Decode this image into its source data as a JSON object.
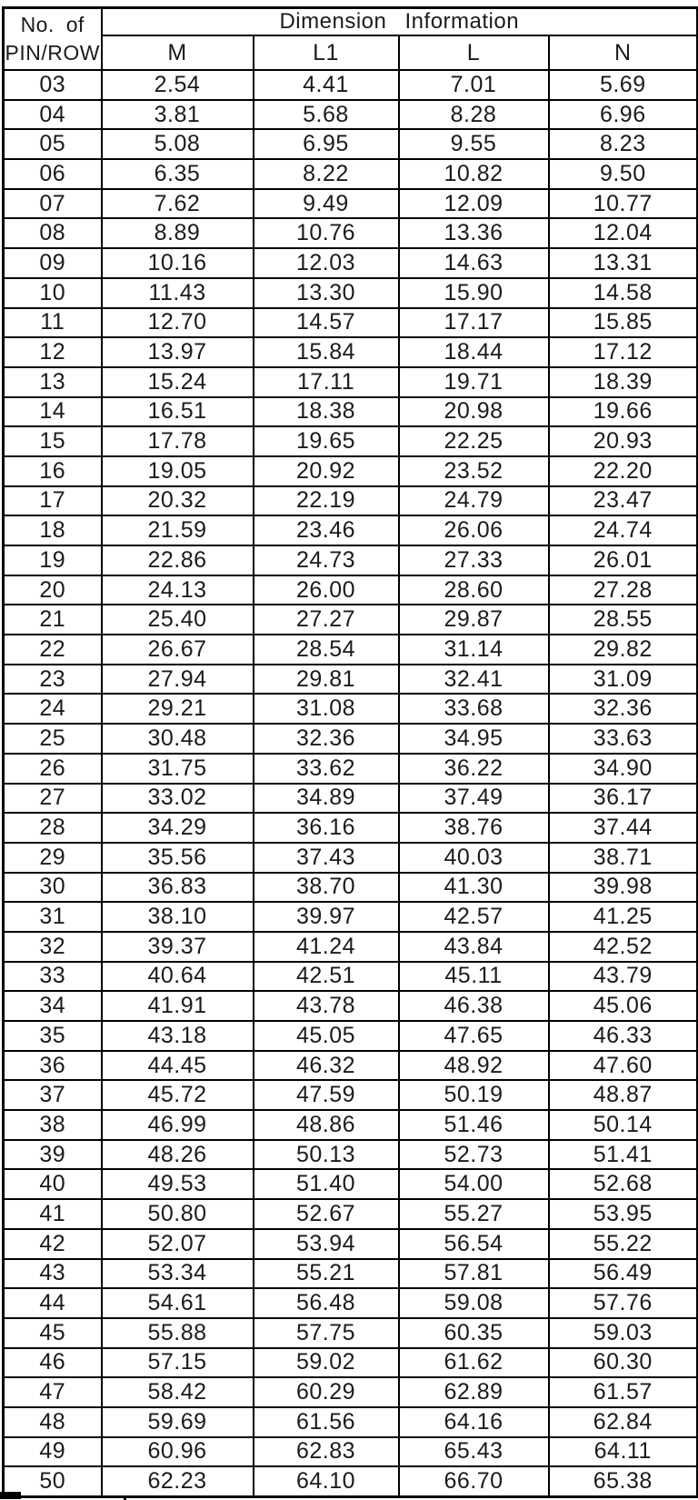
{
  "table": {
    "pin_header": {
      "line1": "No. of",
      "line2": "PIN/ROW"
    },
    "group_header": "Dimension Information",
    "columns": [
      "M",
      "L1",
      "L",
      "N"
    ],
    "rows": [
      [
        "03",
        "2.54",
        "4.41",
        "7.01",
        "5.69"
      ],
      [
        "04",
        "3.81",
        "5.68",
        "8.28",
        "6.96"
      ],
      [
        "05",
        "5.08",
        "6.95",
        "9.55",
        "8.23"
      ],
      [
        "06",
        "6.35",
        "8.22",
        "10.82",
        "9.50"
      ],
      [
        "07",
        "7.62",
        "9.49",
        "12.09",
        "10.77"
      ],
      [
        "08",
        "8.89",
        "10.76",
        "13.36",
        "12.04"
      ],
      [
        "09",
        "10.16",
        "12.03",
        "14.63",
        "13.31"
      ],
      [
        "10",
        "11.43",
        "13.30",
        "15.90",
        "14.58"
      ],
      [
        "11",
        "12.70",
        "14.57",
        "17.17",
        "15.85"
      ],
      [
        "12",
        "13.97",
        "15.84",
        "18.44",
        "17.12"
      ],
      [
        "13",
        "15.24",
        "17.11",
        "19.71",
        "18.39"
      ],
      [
        "14",
        "16.51",
        "18.38",
        "20.98",
        "19.66"
      ],
      [
        "15",
        "17.78",
        "19.65",
        "22.25",
        "20.93"
      ],
      [
        "16",
        "19.05",
        "20.92",
        "23.52",
        "22.20"
      ],
      [
        "17",
        "20.32",
        "22.19",
        "24.79",
        "23.47"
      ],
      [
        "18",
        "21.59",
        "23.46",
        "26.06",
        "24.74"
      ],
      [
        "19",
        "22.86",
        "24.73",
        "27.33",
        "26.01"
      ],
      [
        "20",
        "24.13",
        "26.00",
        "28.60",
        "27.28"
      ],
      [
        "21",
        "25.40",
        "27.27",
        "29.87",
        "28.55"
      ],
      [
        "22",
        "26.67",
        "28.54",
        "31.14",
        "29.82"
      ],
      [
        "23",
        "27.94",
        "29.81",
        "32.41",
        "31.09"
      ],
      [
        "24",
        "29.21",
        "31.08",
        "33.68",
        "32.36"
      ],
      [
        "25",
        "30.48",
        "32.36",
        "34.95",
        "33.63"
      ],
      [
        "26",
        "31.75",
        "33.62",
        "36.22",
        "34.90"
      ],
      [
        "27",
        "33.02",
        "34.89",
        "37.49",
        "36.17"
      ],
      [
        "28",
        "34.29",
        "36.16",
        "38.76",
        "37.44"
      ],
      [
        "29",
        "35.56",
        "37.43",
        "40.03",
        "38.71"
      ],
      [
        "30",
        "36.83",
        "38.70",
        "41.30",
        "39.98"
      ],
      [
        "31",
        "38.10",
        "39.97",
        "42.57",
        "41.25"
      ],
      [
        "32",
        "39.37",
        "41.24",
        "43.84",
        "42.52"
      ],
      [
        "33",
        "40.64",
        "42.51",
        "45.11",
        "43.79"
      ],
      [
        "34",
        "41.91",
        "43.78",
        "46.38",
        "45.06"
      ],
      [
        "35",
        "43.18",
        "45.05",
        "47.65",
        "46.33"
      ],
      [
        "36",
        "44.45",
        "46.32",
        "48.92",
        "47.60"
      ],
      [
        "37",
        "45.72",
        "47.59",
        "50.19",
        "48.87"
      ],
      [
        "38",
        "46.99",
        "48.86",
        "51.46",
        "50.14"
      ],
      [
        "39",
        "48.26",
        "50.13",
        "52.73",
        "51.41"
      ],
      [
        "40",
        "49.53",
        "51.40",
        "54.00",
        "52.68"
      ],
      [
        "41",
        "50.80",
        "52.67",
        "55.27",
        "53.95"
      ],
      [
        "42",
        "52.07",
        "53.94",
        "56.54",
        "55.22"
      ],
      [
        "43",
        "53.34",
        "55.21",
        "57.81",
        "56.49"
      ],
      [
        "44",
        "54.61",
        "56.48",
        "59.08",
        "57.76"
      ],
      [
        "45",
        "55.88",
        "57.75",
        "60.35",
        "59.03"
      ],
      [
        "46",
        "57.15",
        "59.02",
        "61.62",
        "60.30"
      ],
      [
        "47",
        "58.42",
        "60.29",
        "62.89",
        "61.57"
      ],
      [
        "48",
        "59.69",
        "61.56",
        "64.16",
        "62.84"
      ],
      [
        "49",
        "60.96",
        "62.83",
        "65.43",
        "64.11"
      ],
      [
        "50",
        "62.23",
        "64.10",
        "66.70",
        "65.38"
      ]
    ]
  },
  "colors": {
    "line": "#000000",
    "text": "#1b1b1b",
    "background": "#ffffff"
  }
}
